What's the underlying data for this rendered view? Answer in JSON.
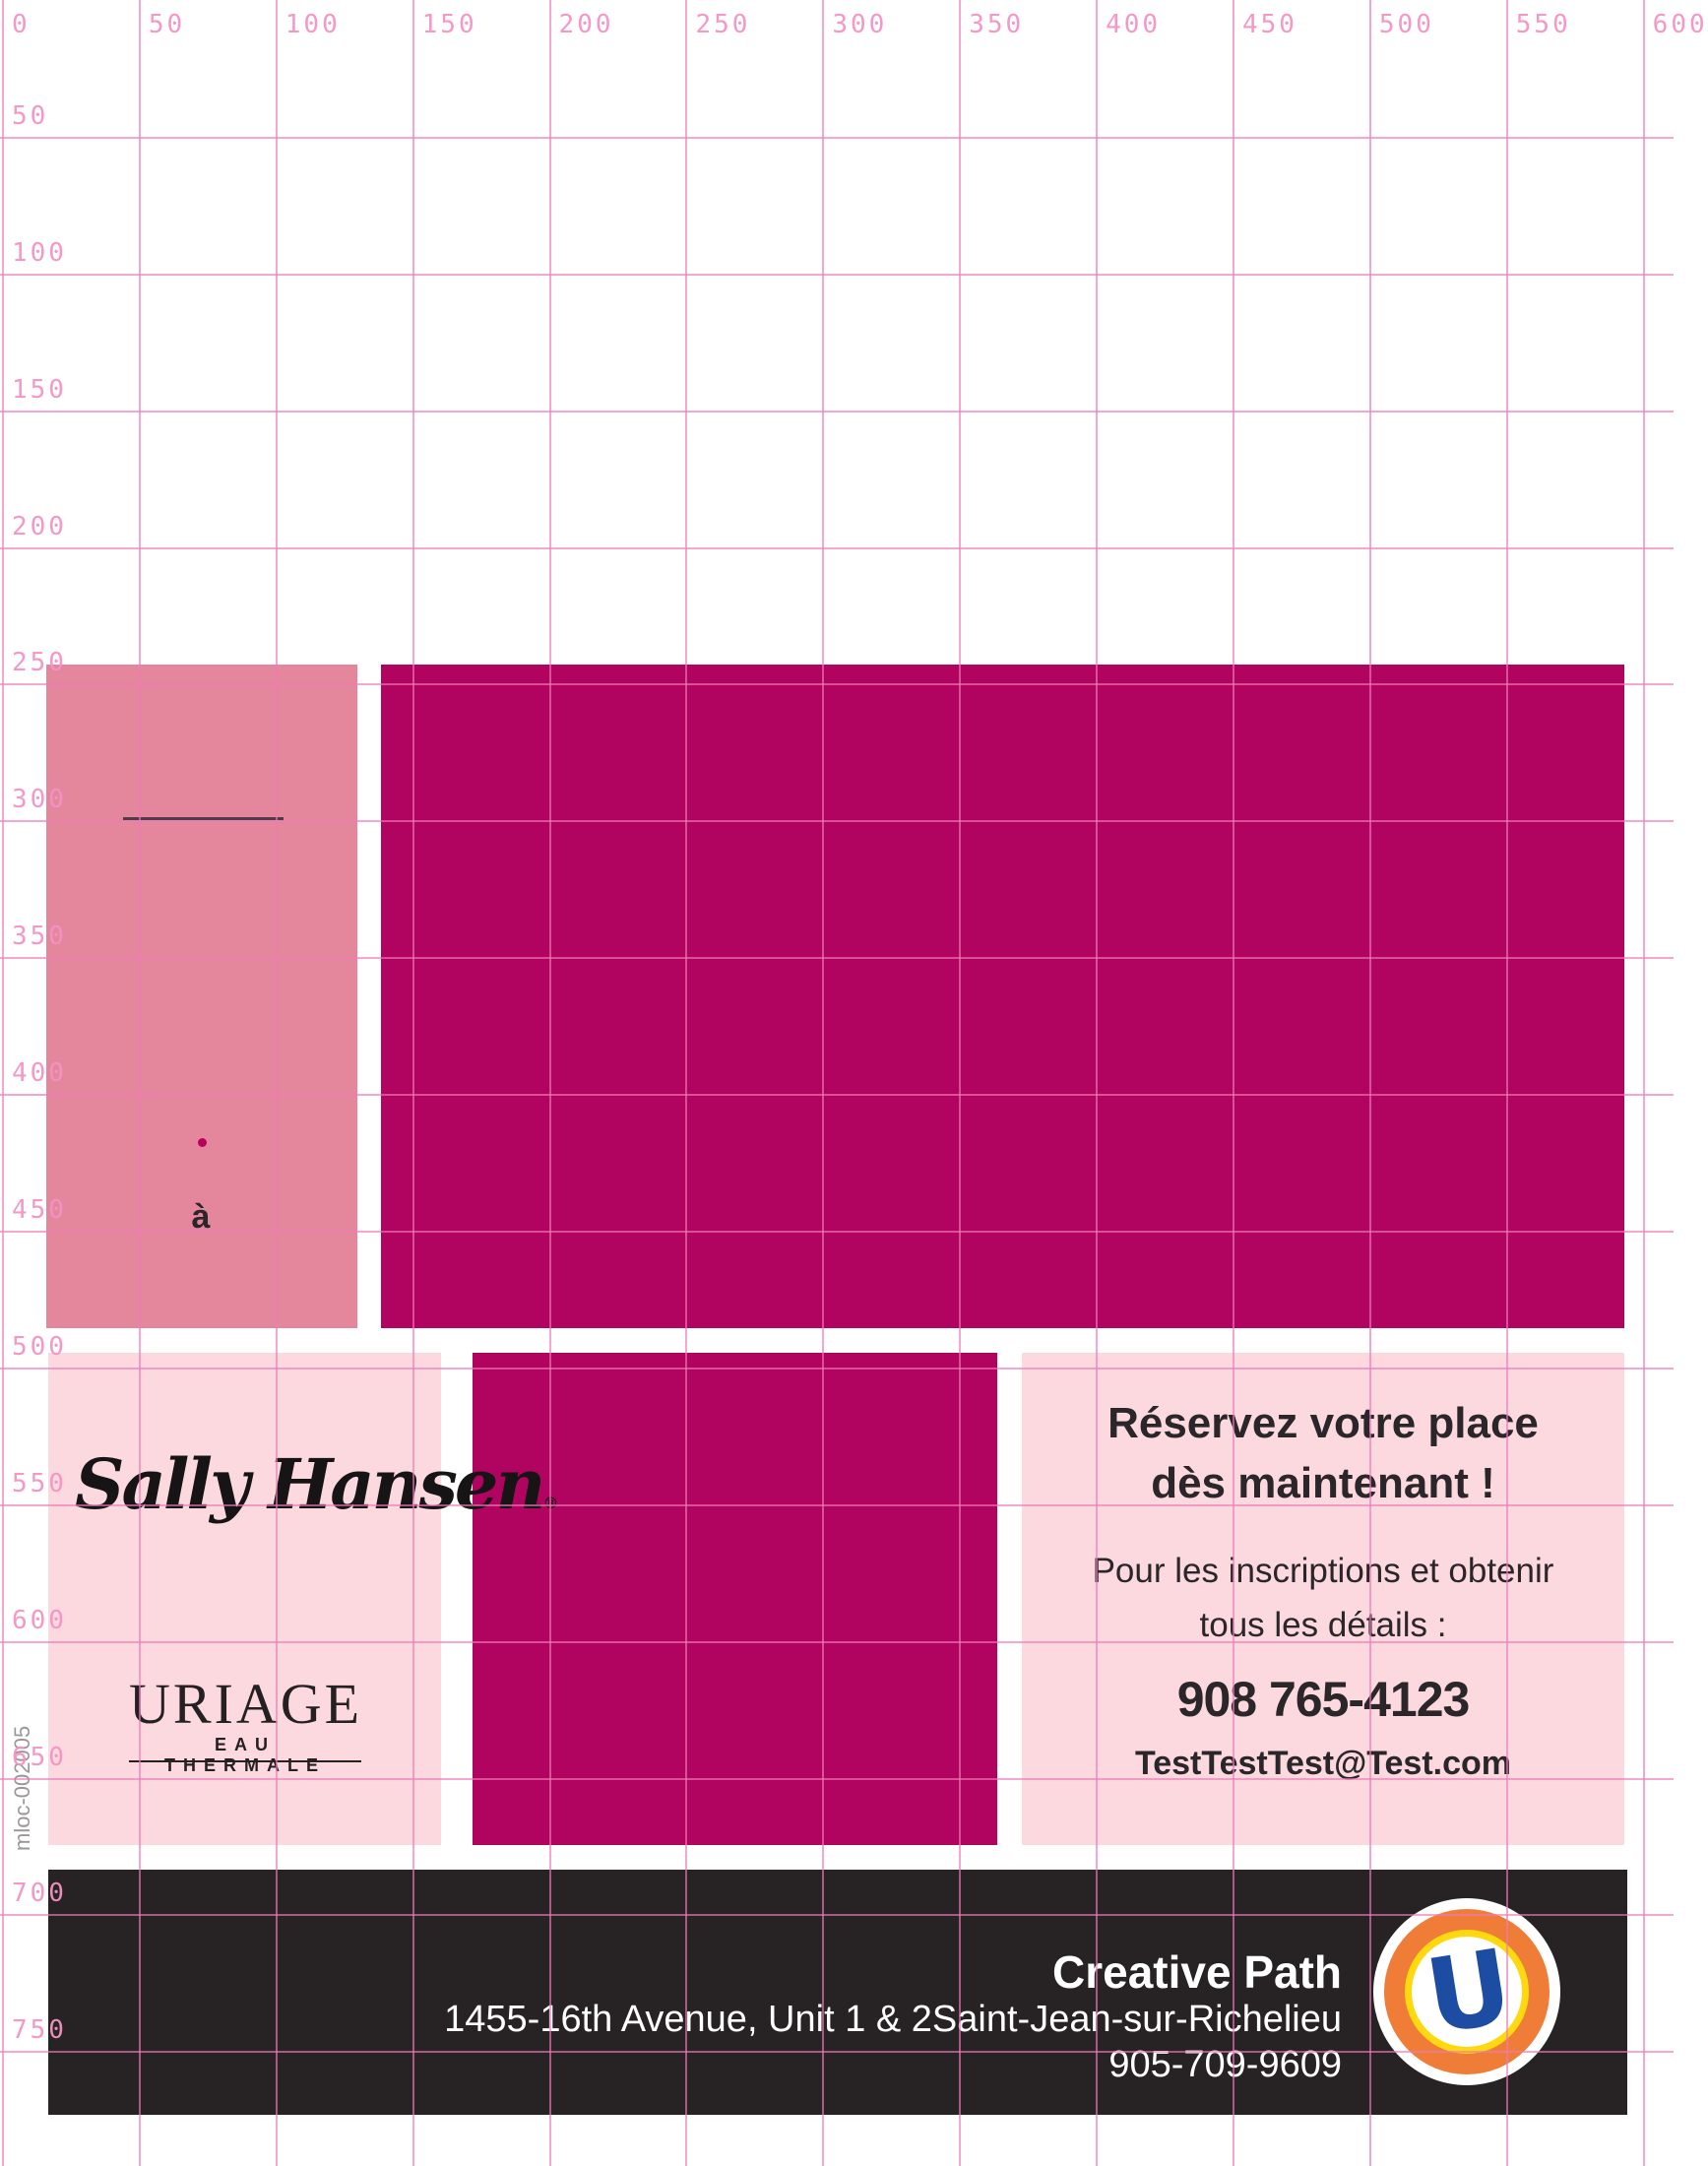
{
  "ruler": {
    "top_labels": [
      "0",
      "50",
      "100",
      "150",
      "200",
      "250",
      "300",
      "350",
      "400",
      "450",
      "500",
      "550",
      "600"
    ],
    "left_labels": [
      "50",
      "100",
      "150",
      "200",
      "250",
      "300",
      "350",
      "400",
      "450",
      "500",
      "550",
      "600",
      "650",
      "700",
      "750"
    ]
  },
  "sidebar_code": "mloc-002005",
  "rose_block": {
    "accent_char": "à"
  },
  "logos": {
    "sally_hansen": "Sally Hansen",
    "sally_hansen_reg": "®",
    "uriage": "URIAGE",
    "uriage_sub": "EAU THERMALE",
    "u_monogram": "U"
  },
  "promo": {
    "headline_line1": "Réservez votre place",
    "headline_line2": "dès maintenant !",
    "body_line1": "Pour les inscriptions et obtenir",
    "body_line2": "tous les détails :",
    "phone": "908 765-4123",
    "email": "TestTestTest@Test.com"
  },
  "footer": {
    "company": "Creative Path",
    "address": "1455-16th Avenue, Unit 1 & 2Saint-Jean-sur-Richelieu",
    "phone": "905-709-9609"
  },
  "colors": {
    "grid": "#ee79b8",
    "gridlabel": "#f493c5",
    "rose": "#e5879c",
    "magenta": "#b10460",
    "lightpink": "#fbd9df",
    "bar": "#272223",
    "ink": "#2b2629",
    "dot": "#b4045e",
    "regline": "#4e3c49",
    "code": "#9b969a",
    "ublue": "#1c4da2",
    "uorange": "#ef7d37",
    "uyellow": "#ffd90f"
  }
}
